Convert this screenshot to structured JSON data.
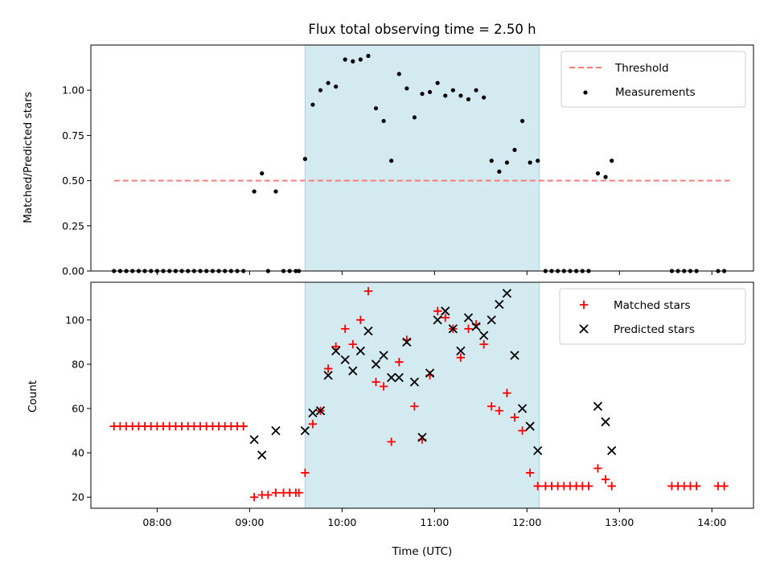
{
  "chart_data": {
    "title": "Flux total observing time = 2.50 h",
    "xlabel": "Time (UTC)",
    "x_ticks": [
      "08:00",
      "09:00",
      "10:00",
      "11:00",
      "12:00",
      "13:00",
      "14:00"
    ],
    "x_range": [
      "07:17",
      "14:27"
    ],
    "observing_window": {
      "start": "09:36",
      "end": "12:08",
      "color": "#d4eaf1"
    },
    "panels": [
      {
        "type": "scatter",
        "ylabel": "Matched/Predicted stars",
        "ylim": [
          0,
          1.25
        ],
        "y_ticks": [
          "0.00",
          "0.25",
          "0.50",
          "0.75",
          "1.00"
        ],
        "threshold": {
          "name": "Threshold",
          "value": 0.5,
          "x_from": "07:32",
          "x_to": "14:12",
          "color": "#ff7b7b"
        },
        "series": [
          {
            "name": "Measurements",
            "marker": "dot",
            "color": "#000000",
            "points": [
              [
                "07:32",
                0
              ],
              [
                "07:36",
                0
              ],
              [
                "07:40",
                0
              ],
              [
                "07:44",
                0
              ],
              [
                "07:48",
                0
              ],
              [
                "07:52",
                0
              ],
              [
                "07:56",
                0
              ],
              [
                "08:00",
                0
              ],
              [
                "08:04",
                0
              ],
              [
                "08:08",
                0
              ],
              [
                "08:12",
                0
              ],
              [
                "08:16",
                0
              ],
              [
                "08:20",
                0
              ],
              [
                "08:24",
                0
              ],
              [
                "08:28",
                0
              ],
              [
                "08:32",
                0
              ],
              [
                "08:36",
                0
              ],
              [
                "08:40",
                0
              ],
              [
                "08:44",
                0
              ],
              [
                "08:48",
                0
              ],
              [
                "08:52",
                0
              ],
              [
                "08:56",
                0
              ],
              [
                "09:03",
                0.44
              ],
              [
                "09:08",
                0.54
              ],
              [
                "09:12",
                0
              ],
              [
                "09:17",
                0.44
              ],
              [
                "09:22",
                0
              ],
              [
                "09:26",
                0
              ],
              [
                "09:30",
                0
              ],
              [
                "09:32",
                0
              ],
              [
                "09:36",
                0.62
              ],
              [
                "09:41",
                0.92
              ],
              [
                "09:46",
                1.0
              ],
              [
                "09:51",
                1.04
              ],
              [
                "09:56",
                1.02
              ],
              [
                "10:02",
                1.17
              ],
              [
                "10:07",
                1.16
              ],
              [
                "10:12",
                1.17
              ],
              [
                "10:17",
                1.19
              ],
              [
                "10:22",
                0.9
              ],
              [
                "10:27",
                0.83
              ],
              [
                "10:32",
                0.61
              ],
              [
                "10:37",
                1.09
              ],
              [
                "10:42",
                1.01
              ],
              [
                "10:47",
                0.85
              ],
              [
                "10:52",
                0.98
              ],
              [
                "10:57",
                0.99
              ],
              [
                "11:02",
                1.04
              ],
              [
                "11:07",
                0.97
              ],
              [
                "11:12",
                1.0
              ],
              [
                "11:17",
                0.97
              ],
              [
                "11:22",
                0.95
              ],
              [
                "11:27",
                1.0
              ],
              [
                "11:32",
                0.96
              ],
              [
                "11:37",
                0.61
              ],
              [
                "11:42",
                0.55
              ],
              [
                "11:47",
                0.6
              ],
              [
                "11:52",
                0.67
              ],
              [
                "11:57",
                0.83
              ],
              [
                "12:02",
                0.6
              ],
              [
                "12:07",
                0.61
              ],
              [
                "12:12",
                0
              ],
              [
                "12:16",
                0
              ],
              [
                "12:20",
                0
              ],
              [
                "12:24",
                0
              ],
              [
                "12:28",
                0
              ],
              [
                "12:32",
                0
              ],
              [
                "12:36",
                0
              ],
              [
                "12:40",
                0
              ],
              [
                "12:46",
                0.54
              ],
              [
                "12:51",
                0.52
              ],
              [
                "12:55",
                0.61
              ],
              [
                "13:34",
                0
              ],
              [
                "13:38",
                0
              ],
              [
                "13:42",
                0
              ],
              [
                "13:46",
                0
              ],
              [
                "13:50",
                0
              ],
              [
                "14:04",
                0
              ],
              [
                "14:08",
                0
              ]
            ]
          }
        ],
        "legend": {
          "position": "top-right",
          "entries": [
            "Threshold",
            "Measurements"
          ]
        }
      },
      {
        "type": "scatter",
        "ylabel": "Count",
        "ylim": [
          15,
          117
        ],
        "y_ticks": [
          "20",
          "40",
          "60",
          "80",
          "100"
        ],
        "series": [
          {
            "name": "Matched stars",
            "marker": "plus",
            "color": "#ff0000",
            "points": [
              [
                "07:32",
                52
              ],
              [
                "07:36",
                52
              ],
              [
                "07:40",
                52
              ],
              [
                "07:44",
                52
              ],
              [
                "07:48",
                52
              ],
              [
                "07:52",
                52
              ],
              [
                "07:56",
                52
              ],
              [
                "08:00",
                52
              ],
              [
                "08:04",
                52
              ],
              [
                "08:08",
                52
              ],
              [
                "08:12",
                52
              ],
              [
                "08:16",
                52
              ],
              [
                "08:20",
                52
              ],
              [
                "08:24",
                52
              ],
              [
                "08:28",
                52
              ],
              [
                "08:32",
                52
              ],
              [
                "08:36",
                52
              ],
              [
                "08:40",
                52
              ],
              [
                "08:44",
                52
              ],
              [
                "08:48",
                52
              ],
              [
                "08:52",
                52
              ],
              [
                "08:56",
                52
              ],
              [
                "09:03",
                20
              ],
              [
                "09:08",
                21
              ],
              [
                "09:12",
                21
              ],
              [
                "09:17",
                22
              ],
              [
                "09:22",
                22
              ],
              [
                "09:26",
                22
              ],
              [
                "09:30",
                22
              ],
              [
                "09:32",
                22
              ],
              [
                "09:36",
                31
              ],
              [
                "09:41",
                53
              ],
              [
                "09:46",
                59
              ],
              [
                "09:51",
                78
              ],
              [
                "09:56",
                88
              ],
              [
                "10:02",
                96
              ],
              [
                "10:07",
                89
              ],
              [
                "10:12",
                100
              ],
              [
                "10:17",
                113
              ],
              [
                "10:22",
                72
              ],
              [
                "10:27",
                70
              ],
              [
                "10:32",
                45
              ],
              [
                "10:37",
                81
              ],
              [
                "10:42",
                91
              ],
              [
                "10:47",
                61
              ],
              [
                "10:52",
                46
              ],
              [
                "10:57",
                75
              ],
              [
                "11:02",
                104
              ],
              [
                "11:07",
                101
              ],
              [
                "11:12",
                96
              ],
              [
                "11:17",
                83
              ],
              [
                "11:22",
                96
              ],
              [
                "11:27",
                98
              ],
              [
                "11:32",
                89
              ],
              [
                "11:37",
                61
              ],
              [
                "11:42",
                59
              ],
              [
                "11:47",
                67
              ],
              [
                "11:52",
                56
              ],
              [
                "11:57",
                50
              ],
              [
                "12:02",
                31
              ],
              [
                "12:07",
                25
              ],
              [
                "12:12",
                25
              ],
              [
                "12:16",
                25
              ],
              [
                "12:20",
                25
              ],
              [
                "12:24",
                25
              ],
              [
                "12:28",
                25
              ],
              [
                "12:32",
                25
              ],
              [
                "12:36",
                25
              ],
              [
                "12:40",
                25
              ],
              [
                "12:46",
                33
              ],
              [
                "12:51",
                28
              ],
              [
                "12:55",
                25
              ],
              [
                "13:34",
                25
              ],
              [
                "13:38",
                25
              ],
              [
                "13:42",
                25
              ],
              [
                "13:46",
                25
              ],
              [
                "13:50",
                25
              ],
              [
                "14:04",
                25
              ],
              [
                "14:08",
                25
              ]
            ]
          },
          {
            "name": "Predicted stars",
            "marker": "x",
            "color": "#000000",
            "points": [
              [
                "09:03",
                46
              ],
              [
                "09:08",
                39
              ],
              [
                "09:17",
                50
              ],
              [
                "09:36",
                50
              ],
              [
                "09:41",
                58
              ],
              [
                "09:46",
                59
              ],
              [
                "09:51",
                75
              ],
              [
                "09:56",
                86
              ],
              [
                "10:02",
                82
              ],
              [
                "10:07",
                77
              ],
              [
                "10:12",
                86
              ],
              [
                "10:17",
                95
              ],
              [
                "10:22",
                80
              ],
              [
                "10:27",
                84
              ],
              [
                "10:32",
                74
              ],
              [
                "10:37",
                74
              ],
              [
                "10:42",
                90
              ],
              [
                "10:47",
                72
              ],
              [
                "10:52",
                47
              ],
              [
                "10:57",
                76
              ],
              [
                "11:02",
                100
              ],
              [
                "11:07",
                104
              ],
              [
                "11:12",
                96
              ],
              [
                "11:17",
                86
              ],
              [
                "11:22",
                101
              ],
              [
                "11:27",
                97
              ],
              [
                "11:32",
                93
              ],
              [
                "11:37",
                100
              ],
              [
                "11:42",
                107
              ],
              [
                "11:47",
                112
              ],
              [
                "11:52",
                84
              ],
              [
                "11:57",
                60
              ],
              [
                "12:02",
                52
              ],
              [
                "12:07",
                41
              ],
              [
                "12:46",
                61
              ],
              [
                "12:51",
                54
              ],
              [
                "12:55",
                41
              ]
            ]
          }
        ],
        "legend": {
          "position": "top-right",
          "entries": [
            "Matched stars",
            "Predicted stars"
          ]
        }
      }
    ]
  }
}
